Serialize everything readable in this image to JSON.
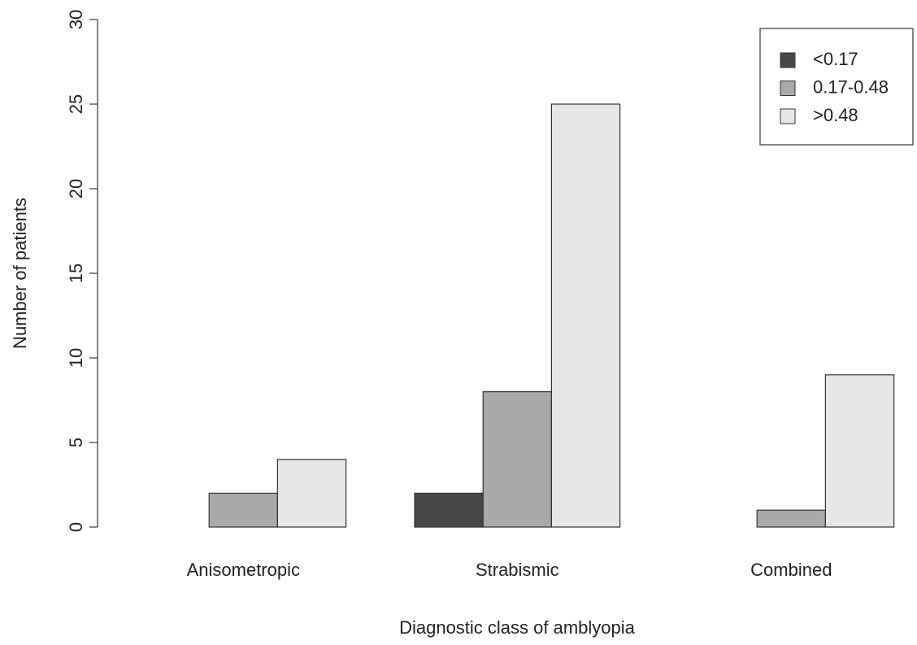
{
  "chart_data": {
    "type": "bar",
    "x_label": "Diagnostic class of amblyopia",
    "y_label": "Number of patients",
    "categories": [
      "Anisometropic",
      "Strabismic",
      "Combined"
    ],
    "series": [
      {
        "name": "<0.17",
        "color": "#474747",
        "values": [
          0,
          2,
          0
        ]
      },
      {
        "name": "0.17-0.48",
        "color": "#a9a9a9",
        "values": [
          2,
          8,
          1
        ]
      },
      {
        "name": ">0.48",
        "color": "#e6e6e6",
        "values": [
          4,
          25,
          9
        ]
      }
    ],
    "ylim": [
      0,
      30
    ],
    "yticks": [
      0,
      5,
      10,
      15,
      20,
      25,
      30
    ],
    "grid": false,
    "legend": "top-right"
  }
}
